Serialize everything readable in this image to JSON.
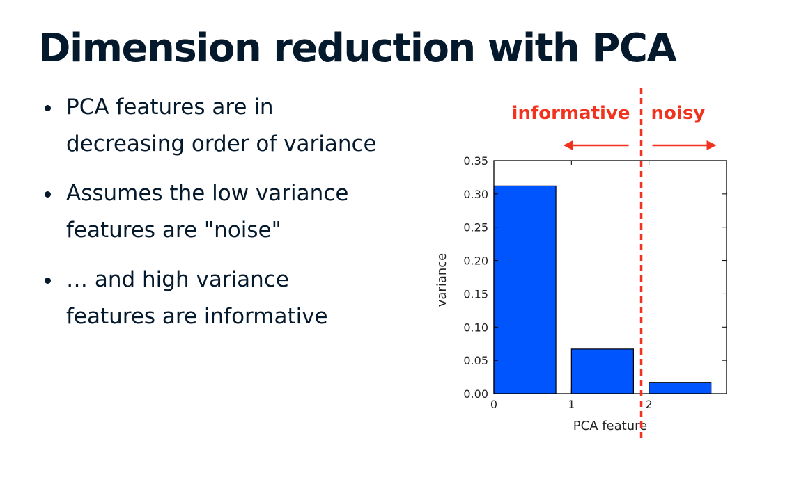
{
  "slide": {
    "title": "Dimension reduction with PCA",
    "bullets": [
      "PCA features are in decreasing order of variance",
      "Assumes the low variance features are \"noise\"",
      "… and high variance features are informative"
    ]
  },
  "colors": {
    "title_text": "#05192d",
    "bar_fill": "#0055ff",
    "annotation_red": "#f0321e"
  },
  "chart_data": {
    "type": "bar",
    "categories": [
      "0",
      "1",
      "2"
    ],
    "x": [
      0,
      1,
      2
    ],
    "values": [
      0.312,
      0.067,
      0.017
    ],
    "xlabel": "PCA feature",
    "ylabel": "variance",
    "ylim": [
      0,
      0.35
    ],
    "xlim": [
      0,
      3
    ],
    "yticks": [
      "0.00",
      "0.05",
      "0.10",
      "0.15",
      "0.20",
      "0.25",
      "0.30",
      "0.35"
    ],
    "xticks": [
      "0",
      "1",
      "2"
    ],
    "grid": false,
    "annotations": {
      "informative_label": "informative",
      "noisy_label": "noisy",
      "divider_x": 1.9,
      "divider_style": "red dashed vertical line",
      "arrows": [
        "left",
        "right"
      ]
    }
  }
}
